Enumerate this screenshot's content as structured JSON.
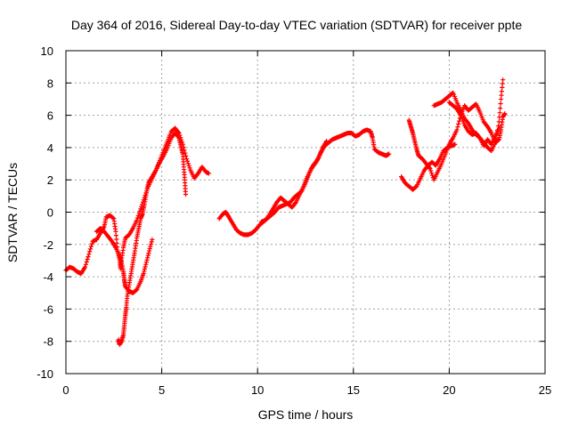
{
  "chart_data": {
    "type": "scatter",
    "title": "Day 364 of 2016, Sidereal Day-to-day VTEC variation (SDTVAR) for receiver ppte",
    "xlabel": "GPS time / hours",
    "ylabel": "SDTVAR / TECUs",
    "xlim": [
      0,
      25
    ],
    "ylim": [
      -10,
      10
    ],
    "xticks": [
      0,
      5,
      10,
      15,
      20,
      25
    ],
    "yticks": [
      -10,
      -8,
      -6,
      -4,
      -2,
      0,
      2,
      4,
      6,
      8,
      10
    ],
    "grid": true,
    "marker": "+",
    "color": "#ff0000",
    "series": [
      {
        "name": "SDTVAR",
        "segments": [
          [
            [
              0.0,
              -3.6
            ],
            [
              0.2,
              -3.4
            ],
            [
              0.4,
              -3.5
            ],
            [
              0.6,
              -3.7
            ],
            [
              0.8,
              -3.8
            ],
            [
              1.0,
              -3.4
            ],
            [
              1.2,
              -2.6
            ],
            [
              1.4,
              -1.8
            ],
            [
              1.6,
              -1.7
            ],
            [
              1.8,
              -1.3
            ],
            [
              2.0,
              -0.9
            ],
            [
              2.1,
              -0.3
            ],
            [
              2.3,
              -0.2
            ],
            [
              2.5,
              -0.4
            ],
            [
              2.6,
              -1.2
            ],
            [
              2.7,
              -2.4
            ],
            [
              2.8,
              -2.9
            ],
            [
              2.85,
              -3.5
            ],
            [
              2.9,
              -3.0
            ],
            [
              3.0,
              -2.2
            ],
            [
              3.1,
              -1.6
            ],
            [
              3.3,
              -1.4
            ],
            [
              3.5,
              -1.0
            ],
            [
              3.7,
              -0.5
            ],
            [
              3.9,
              0.2
            ],
            [
              4.1,
              0.9
            ],
            [
              4.3,
              1.6
            ],
            [
              4.5,
              2.1
            ],
            [
              4.7,
              2.6
            ],
            [
              4.9,
              3.1
            ],
            [
              5.1,
              3.5
            ],
            [
              5.3,
              4.0
            ],
            [
              5.5,
              4.6
            ],
            [
              5.7,
              4.9
            ],
            [
              5.9,
              4.6
            ],
            [
              6.0,
              4.1
            ],
            [
              6.1,
              3.6
            ],
            [
              6.15,
              2.8
            ],
            [
              6.2,
              2.0
            ],
            [
              6.25,
              1.1
            ]
          ],
          [
            [
              1.6,
              -1.2
            ],
            [
              1.8,
              -1.0
            ],
            [
              2.0,
              -1.2
            ],
            [
              2.2,
              -1.5
            ],
            [
              2.4,
              -1.8
            ],
            [
              2.6,
              -2.2
            ],
            [
              2.8,
              -2.7
            ],
            [
              2.9,
              -3.1
            ],
            [
              3.0,
              -3.7
            ],
            [
              3.05,
              -4.2
            ],
            [
              3.1,
              -4.6
            ],
            [
              3.3,
              -4.9
            ],
            [
              3.5,
              -5.0
            ],
            [
              3.7,
              -4.8
            ],
            [
              3.9,
              -4.3
            ],
            [
              4.05,
              -3.8
            ],
            [
              4.2,
              -3.1
            ],
            [
              4.35,
              -2.4
            ],
            [
              4.5,
              -1.7
            ]
          ],
          [
            [
              2.75,
              -7.9
            ],
            [
              2.8,
              -8.2
            ],
            [
              2.9,
              -8.0
            ],
            [
              3.0,
              -7.6
            ],
            [
              3.05,
              -7.0
            ],
            [
              3.1,
              -6.4
            ],
            [
              3.15,
              -5.9
            ],
            [
              3.2,
              -5.2
            ],
            [
              3.3,
              -4.5
            ],
            [
              3.4,
              -3.8
            ],
            [
              3.5,
              -3.1
            ],
            [
              3.6,
              -2.4
            ],
            [
              3.7,
              -1.6
            ],
            [
              3.8,
              -1.0
            ],
            [
              3.9,
              -0.4
            ],
            [
              4.0,
              -0.1
            ],
            [
              4.1,
              0.5
            ],
            [
              4.2,
              1.2
            ],
            [
              4.3,
              1.8
            ],
            [
              4.5,
              2.2
            ],
            [
              4.7,
              2.6
            ],
            [
              4.9,
              3.2
            ],
            [
              5.1,
              3.8
            ],
            [
              5.3,
              4.4
            ],
            [
              5.5,
              5.0
            ],
            [
              5.7,
              5.2
            ],
            [
              5.9,
              4.9
            ],
            [
              6.1,
              4.2
            ],
            [
              6.3,
              3.3
            ],
            [
              6.5,
              2.6
            ],
            [
              6.7,
              2.1
            ],
            [
              6.9,
              2.4
            ],
            [
              7.1,
              2.8
            ],
            [
              7.3,
              2.5
            ],
            [
              7.45,
              2.4
            ]
          ],
          [
            [
              8.0,
              -0.4
            ],
            [
              8.2,
              -0.1
            ],
            [
              8.35,
              0.0
            ],
            [
              8.5,
              -0.3
            ],
            [
              8.7,
              -0.7
            ],
            [
              8.9,
              -1.1
            ],
            [
              9.1,
              -1.3
            ],
            [
              9.3,
              -1.4
            ],
            [
              9.5,
              -1.4
            ],
            [
              9.7,
              -1.3
            ],
            [
              9.9,
              -1.1
            ],
            [
              10.1,
              -0.8
            ],
            [
              10.3,
              -0.6
            ],
            [
              10.5,
              -0.4
            ],
            [
              10.7,
              -0.2
            ],
            [
              10.9,
              0.0
            ],
            [
              11.1,
              0.3
            ],
            [
              11.3,
              0.4
            ],
            [
              11.5,
              0.5
            ],
            [
              11.7,
              0.6
            ],
            [
              11.9,
              0.9
            ],
            [
              12.1,
              1.1
            ],
            [
              12.3,
              1.3
            ],
            [
              12.5,
              1.8
            ],
            [
              12.7,
              2.4
            ],
            [
              12.9,
              2.9
            ],
            [
              13.1,
              3.2
            ],
            [
              13.3,
              3.7
            ],
            [
              13.5,
              4.1
            ],
            [
              13.7,
              4.3
            ],
            [
              13.9,
              4.5
            ],
            [
              14.1,
              4.6
            ],
            [
              14.3,
              4.7
            ],
            [
              14.5,
              4.8
            ],
            [
              14.7,
              4.9
            ],
            [
              14.9,
              4.9
            ],
            [
              15.1,
              4.7
            ],
            [
              15.3,
              4.8
            ],
            [
              15.5,
              5.0
            ],
            [
              15.7,
              5.1
            ],
            [
              15.9,
              5.0
            ],
            [
              16.0,
              4.6
            ],
            [
              16.1,
              3.9
            ],
            [
              16.3,
              3.7
            ],
            [
              16.5,
              3.6
            ],
            [
              16.7,
              3.5
            ],
            [
              16.85,
              3.6
            ]
          ],
          [
            [
              10.2,
              -0.6
            ],
            [
              10.4,
              -0.5
            ],
            [
              10.6,
              -0.2
            ],
            [
              10.8,
              0.2
            ],
            [
              11.0,
              0.6
            ],
            [
              11.2,
              0.9
            ],
            [
              11.4,
              0.7
            ],
            [
              11.6,
              0.5
            ],
            [
              11.8,
              0.3
            ],
            [
              12.0,
              0.6
            ],
            [
              12.2,
              1.1
            ],
            [
              12.4,
              1.6
            ],
            [
              12.6,
              2.2
            ],
            [
              12.8,
              2.7
            ],
            [
              13.0,
              3.0
            ],
            [
              13.2,
              3.4
            ],
            [
              13.4,
              4.0
            ],
            [
              13.6,
              4.4
            ]
          ],
          [
            [
              17.5,
              2.2
            ],
            [
              17.7,
              1.8
            ],
            [
              17.9,
              1.6
            ],
            [
              18.1,
              1.4
            ],
            [
              18.3,
              1.6
            ],
            [
              18.5,
              2.1
            ],
            [
              18.7,
              2.6
            ],
            [
              18.9,
              2.9
            ],
            [
              19.1,
              3.1
            ],
            [
              19.3,
              2.9
            ],
            [
              19.5,
              3.3
            ],
            [
              19.7,
              3.8
            ],
            [
              19.9,
              4.0
            ],
            [
              20.1,
              4.1
            ],
            [
              20.3,
              4.2
            ]
          ],
          [
            [
              17.9,
              5.7
            ],
            [
              18.0,
              5.3
            ],
            [
              18.1,
              4.9
            ],
            [
              18.2,
              4.4
            ],
            [
              18.3,
              3.9
            ],
            [
              18.4,
              3.5
            ],
            [
              18.6,
              3.3
            ],
            [
              18.8,
              3.0
            ],
            [
              19.0,
              2.7
            ],
            [
              19.2,
              2.0
            ],
            [
              19.4,
              2.5
            ],
            [
              19.6,
              3.0
            ],
            [
              19.8,
              3.6
            ],
            [
              20.0,
              4.2
            ],
            [
              20.2,
              4.6
            ],
            [
              20.4,
              5.1
            ],
            [
              20.6,
              6.0
            ],
            [
              20.8,
              6.6
            ],
            [
              21.0,
              6.3
            ],
            [
              21.2,
              6.5
            ],
            [
              21.4,
              6.7
            ],
            [
              21.6,
              6.2
            ],
            [
              21.8,
              5.6
            ],
            [
              22.0,
              5.3
            ],
            [
              22.2,
              4.9
            ],
            [
              22.4,
              4.3
            ],
            [
              22.6,
              4.5
            ],
            [
              22.7,
              5.1
            ],
            [
              22.8,
              5.9
            ],
            [
              22.9,
              6.1
            ]
          ],
          [
            [
              19.2,
              6.6
            ],
            [
              19.4,
              6.7
            ],
            [
              19.6,
              6.8
            ],
            [
              19.8,
              7.0
            ],
            [
              20.0,
              7.2
            ],
            [
              20.2,
              7.4
            ],
            [
              20.4,
              6.8
            ],
            [
              20.6,
              6.3
            ],
            [
              20.8,
              5.8
            ],
            [
              21.0,
              5.5
            ],
            [
              21.2,
              5.1
            ],
            [
              21.4,
              4.8
            ],
            [
              21.6,
              4.6
            ],
            [
              21.8,
              4.3
            ],
            [
              22.0,
              4.0
            ],
            [
              22.2,
              3.8
            ],
            [
              22.4,
              4.3
            ],
            [
              22.6,
              5.6
            ],
            [
              22.7,
              7.0
            ],
            [
              22.8,
              8.2
            ]
          ],
          [
            [
              20.0,
              6.8
            ],
            [
              20.2,
              6.6
            ],
            [
              20.4,
              6.4
            ],
            [
              20.6,
              6.0
            ],
            [
              20.8,
              5.4
            ],
            [
              21.0,
              5.0
            ],
            [
              21.2,
              4.8
            ],
            [
              21.4,
              4.9
            ],
            [
              21.6,
              4.6
            ],
            [
              21.8,
              4.1
            ],
            [
              22.0,
              4.5
            ],
            [
              22.2,
              4.2
            ],
            [
              22.4,
              4.7
            ],
            [
              22.6,
              5.2
            ]
          ]
        ]
      }
    ]
  }
}
